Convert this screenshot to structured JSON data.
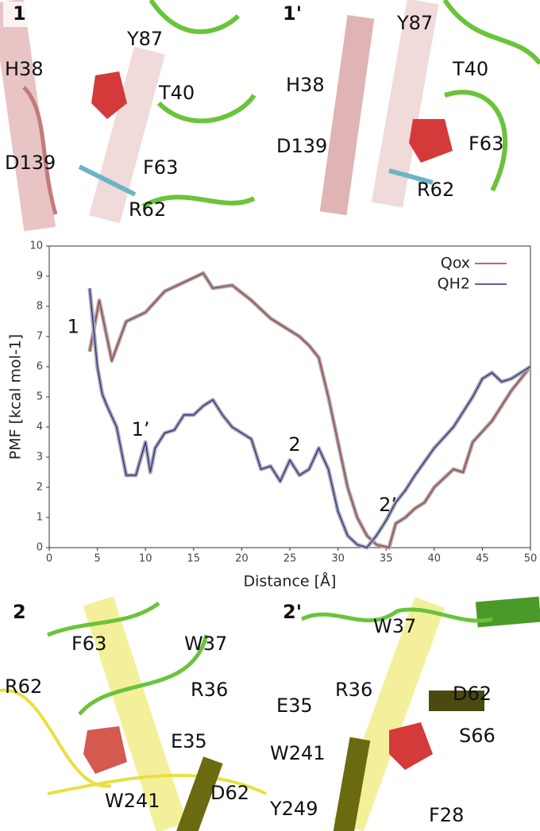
{
  "chart_data": {
    "type": "line",
    "xlabel": "Distance [Å]",
    "ylabel": "PMF [kcal mol-1]",
    "xlim": [
      0,
      50
    ],
    "xticks": [
      0,
      5,
      10,
      15,
      20,
      25,
      30,
      35,
      40,
      45,
      50
    ],
    "ylim": [
      0,
      10
    ],
    "yticks": [
      0,
      1,
      2,
      3,
      4,
      5,
      6,
      7,
      8,
      9,
      10
    ],
    "legend": "upper right",
    "series": [
      {
        "name": "Qox",
        "color": "#a33a3a",
        "x": [
          4.2,
          5.2,
          6.5,
          8,
          10,
          12,
          14,
          16,
          17,
          19,
          21,
          23,
          25,
          26,
          27,
          28,
          29,
          30,
          31,
          32,
          33,
          34,
          35.3,
          36,
          37,
          38,
          39,
          40,
          42,
          43,
          44,
          46,
          48,
          50
        ],
        "values": [
          6.5,
          8.2,
          6.2,
          7.5,
          7.8,
          8.5,
          8.8,
          9.1,
          8.6,
          8.7,
          8.2,
          7.6,
          7.2,
          7.0,
          6.7,
          6.3,
          5.0,
          3.5,
          2.0,
          1.0,
          0.4,
          0.1,
          0,
          0.8,
          1.0,
          1.3,
          1.5,
          2.0,
          2.6,
          2.5,
          3.5,
          4.2,
          5.2,
          6.0
        ]
      },
      {
        "name": "QH2",
        "color": "#2a2a9a",
        "x": [
          4.2,
          5,
          5.5,
          6,
          7,
          8,
          9,
          10,
          10.5,
          11,
          12,
          13,
          14,
          15,
          16,
          17,
          18,
          19,
          20,
          21,
          22,
          23,
          24,
          25,
          26,
          27,
          28,
          29,
          30,
          31,
          32,
          33,
          33.5,
          34,
          35,
          36,
          37,
          38,
          40,
          42,
          44,
          45,
          46,
          47,
          48,
          50
        ],
        "values": [
          8.6,
          6.0,
          5.1,
          4.7,
          4.0,
          2.4,
          2.4,
          3.5,
          2.5,
          3.3,
          3.8,
          3.9,
          4.4,
          4.4,
          4.7,
          4.9,
          4.4,
          4.0,
          3.8,
          3.6,
          2.6,
          2.7,
          2.2,
          2.9,
          2.4,
          2.6,
          3.3,
          2.6,
          1.2,
          0.4,
          0.1,
          0,
          0.2,
          0.4,
          0.9,
          1.5,
          1.9,
          2.4,
          3.3,
          4.0,
          5.0,
          5.6,
          5.8,
          5.5,
          5.6,
          6.0
        ]
      }
    ],
    "annotations": [
      {
        "text": "1",
        "x": 2.5,
        "y": 7.3
      },
      {
        "text": "1’",
        "x": 9.5,
        "y": 3.9
      },
      {
        "text": "2",
        "x": 25.5,
        "y": 3.4
      },
      {
        "text": "2’",
        "x": 35.2,
        "y": 1.4
      }
    ]
  },
  "panels": [
    {
      "label": "1",
      "residues": [
        "H38",
        "Y87",
        "T40",
        "F63",
        "D139",
        "R62"
      ]
    },
    {
      "label": "1'",
      "residues": [
        "H38",
        "Y87",
        "T40",
        "F63",
        "D139",
        "R62"
      ]
    },
    {
      "label": "2",
      "residues": [
        "F63",
        "W37",
        "R62",
        "R36",
        "E35",
        "W241",
        "D62"
      ]
    },
    {
      "label": "2'",
      "residues": [
        "W37",
        "R36",
        "D62",
        "E35",
        "S66",
        "W241",
        "Y249",
        "F28"
      ]
    }
  ]
}
